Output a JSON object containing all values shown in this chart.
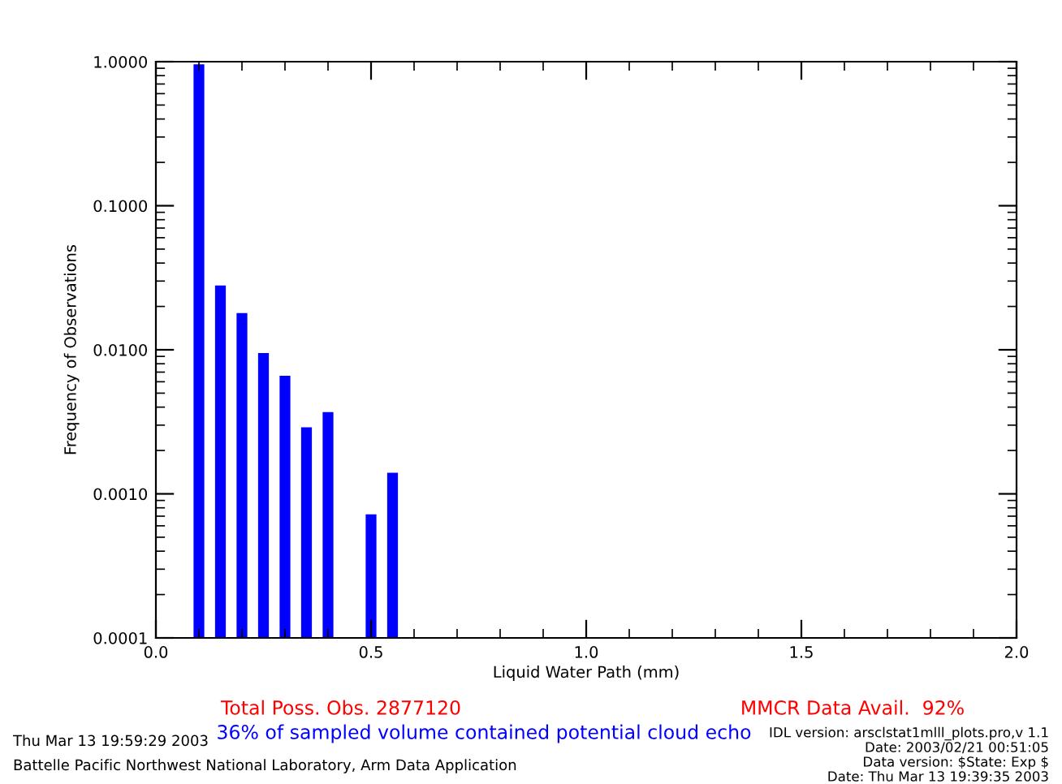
{
  "chart_data": {
    "type": "bar",
    "xlabel": "Liquid Water Path (mm)",
    "ylabel": "Frequency of Observations",
    "x": [
      0.1,
      0.15,
      0.2,
      0.25,
      0.3,
      0.35,
      0.4,
      0.5,
      0.55
    ],
    "values": [
      0.96,
      0.028,
      0.018,
      0.0095,
      0.0066,
      0.0029,
      0.0037,
      0.00072,
      0.0014
    ],
    "color": "#0000ff",
    "log": "y",
    "grid": false,
    "xlim": [
      0,
      2
    ],
    "xticks": [
      {
        "value": 0,
        "label": "0.0"
      },
      {
        "value": 0.5,
        "label": "0.5"
      },
      {
        "value": 1,
        "label": "1.0"
      },
      {
        "value": 1.5,
        "label": "1.5"
      },
      {
        "value": 2,
        "label": "2.0"
      }
    ],
    "ylim": [
      0.0001,
      1
    ],
    "yticks": [
      {
        "value": 0.0001,
        "label": "0.0001"
      },
      {
        "value": 0.001,
        "label": "0.0010"
      },
      {
        "value": 0.01,
        "label": "0.0100"
      },
      {
        "value": 0.1,
        "label": "0.1000"
      },
      {
        "value": 1,
        "label": "1.0000"
      }
    ],
    "annotations": [
      "Total Poss. Obs. 2877120",
      "MMCR Data Avail.  92%",
      "36% of sampled volume contained potential cloud echo",
      "Thu Mar 13 19:59:29 2003",
      "Battelle Pacific Northwest National Laboratory, Arm Data Application",
      "IDL version: arsclstat1mlll_plots.pro,v 1.1",
      "Date: 2003/02/21 00:51:05",
      "Data version: $State: Exp $",
      "Date: Thu Mar 13 19:39:35 2003"
    ]
  }
}
